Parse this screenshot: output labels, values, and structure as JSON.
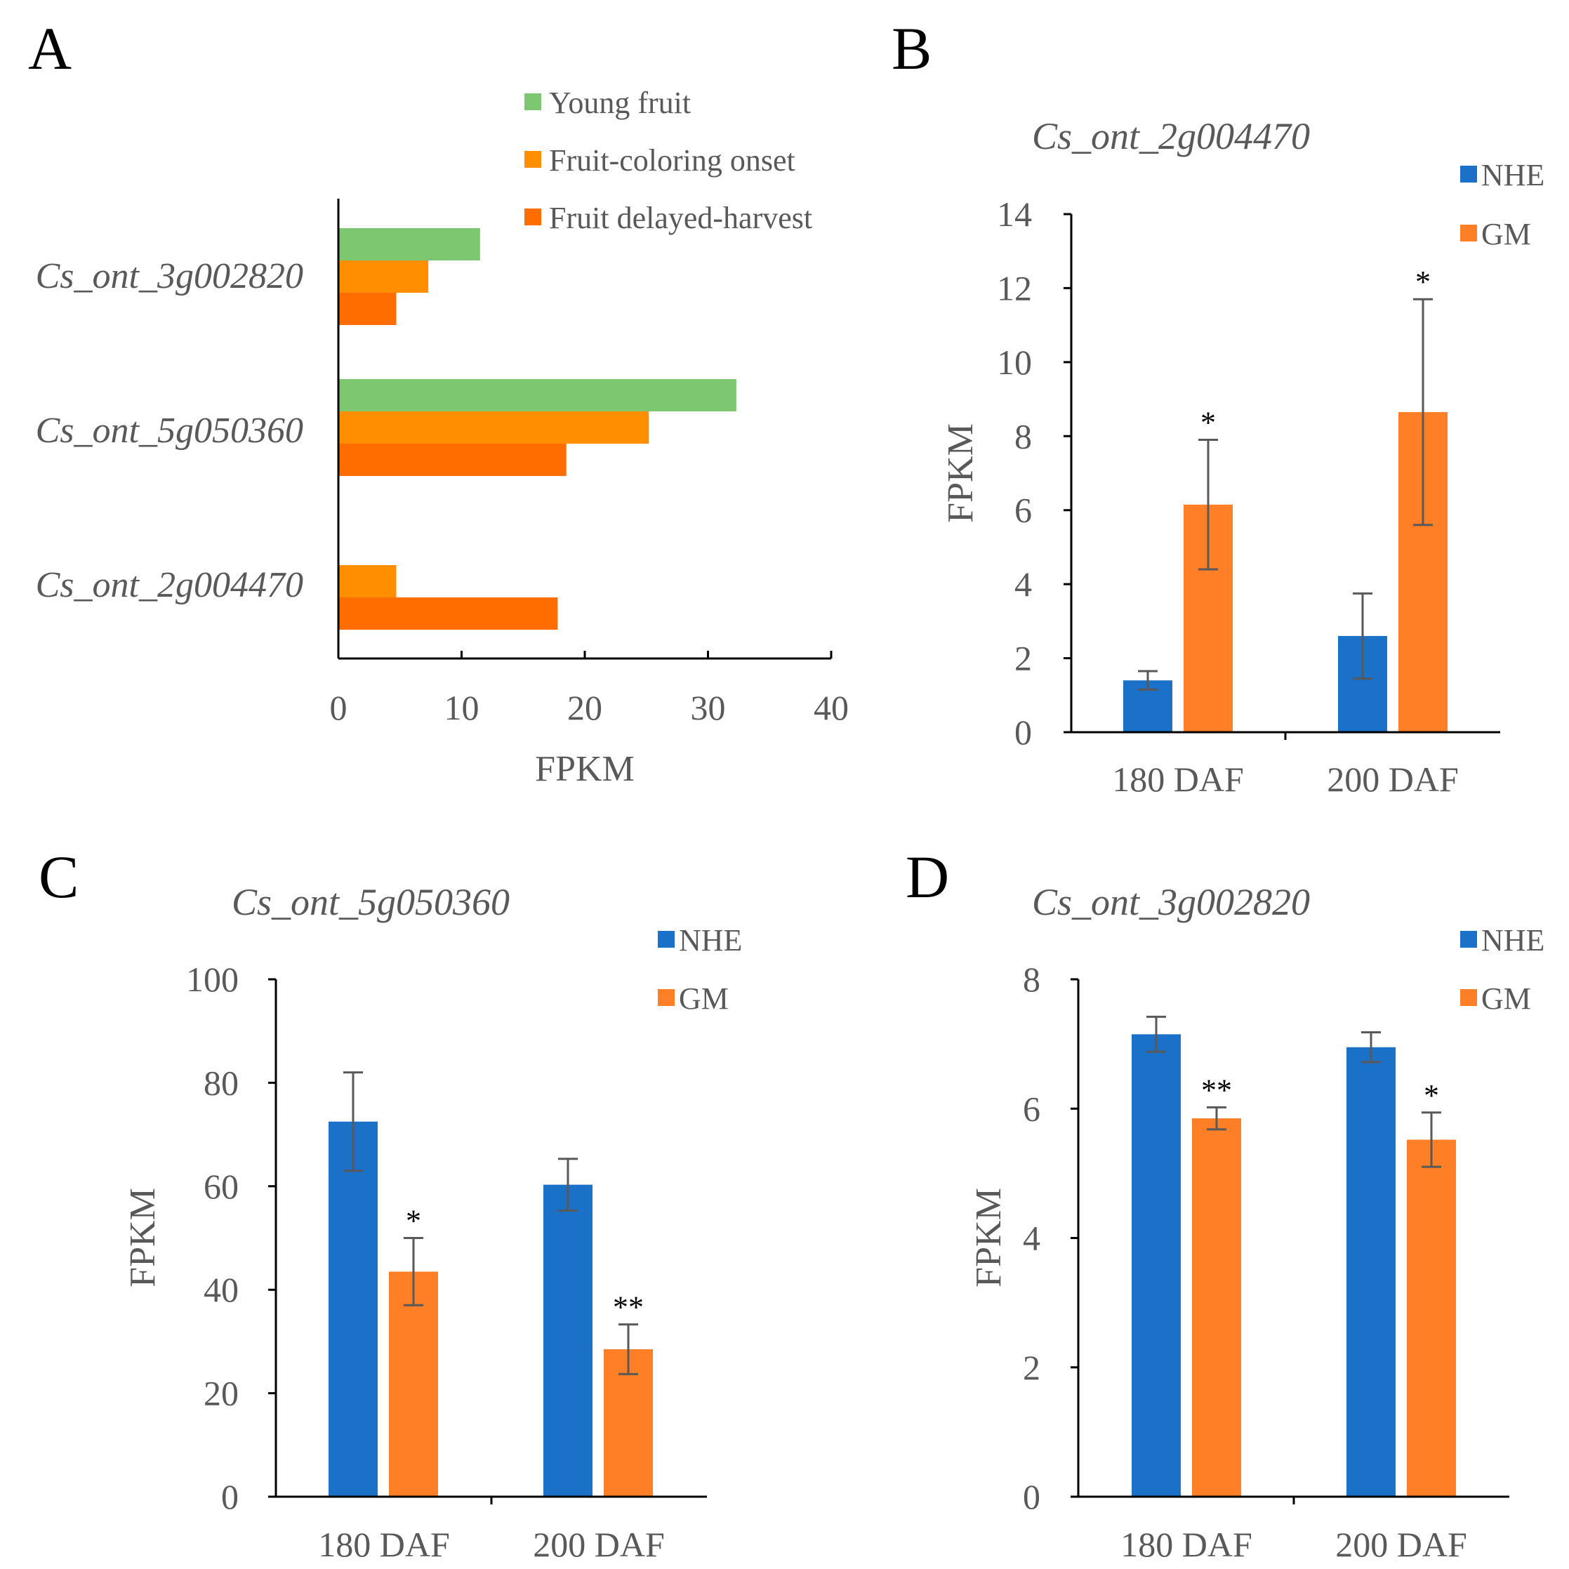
{
  "chart_data": [
    {
      "panel": "A",
      "type": "bar",
      "orientation": "horizontal",
      "categories": [
        "Cs_ont_3g002820",
        "Cs_ont_5g050360",
        "Cs_ont_2g004470"
      ],
      "series": [
        {
          "name": "Young fruit",
          "color": "#7ec771",
          "values": [
            11.5,
            32.3,
            0
          ]
        },
        {
          "name": "Fruit-coloring onset",
          "color": "#ff8f00",
          "values": [
            7.3,
            25.2,
            4.7
          ]
        },
        {
          "name": "Fruit delayed-harvest",
          "color": "#ff6d00",
          "values": [
            4.7,
            18.5,
            17.8
          ]
        }
      ],
      "xlabel": "FPKM",
      "xlim": [
        0,
        40
      ],
      "xticks": [
        "0",
        "10",
        "20",
        "30",
        "40"
      ],
      "legend_position": "top-right"
    },
    {
      "panel": "B",
      "type": "bar",
      "title": "Cs_ont_2g004470",
      "categories": [
        "180 DAF",
        "200 DAF"
      ],
      "series": [
        {
          "name": "NHE",
          "color": "#1b70c8",
          "values": [
            1.4,
            2.6
          ],
          "errors": [
            0.25,
            1.15
          ],
          "significance": [
            "",
            ""
          ]
        },
        {
          "name": "GM",
          "color": "#ff7f27",
          "values": [
            6.15,
            8.65
          ],
          "errors": [
            1.75,
            3.05
          ],
          "significance": [
            "*",
            "*"
          ]
        }
      ],
      "ylabel": "FPKM",
      "ylim": [
        0,
        14
      ],
      "yticks": [
        "0",
        "2",
        "4",
        "6",
        "8",
        "10",
        "12",
        "14"
      ],
      "legend_position": "top-right"
    },
    {
      "panel": "C",
      "type": "bar",
      "title": "Cs_ont_5g050360",
      "categories": [
        "180 DAF",
        "200 DAF"
      ],
      "series": [
        {
          "name": "NHE",
          "color": "#1b70c8",
          "values": [
            72.5,
            60.3
          ],
          "errors": [
            9.5,
            5.0
          ],
          "significance": [
            "",
            ""
          ]
        },
        {
          "name": "GM",
          "color": "#ff7f27",
          "values": [
            43.5,
            28.5
          ],
          "errors": [
            6.5,
            4.8
          ],
          "significance": [
            "*",
            "**"
          ]
        }
      ],
      "ylabel": "FPKM",
      "ylim": [
        0,
        100
      ],
      "yticks": [
        "0",
        "20",
        "40",
        "60",
        "80",
        "100"
      ],
      "legend_position": "top-right"
    },
    {
      "panel": "D",
      "type": "bar",
      "title": "Cs_ont_3g002820",
      "categories": [
        "180 DAF",
        "200 DAF"
      ],
      "series": [
        {
          "name": "NHE",
          "color": "#1b70c8",
          "values": [
            7.15,
            6.95
          ],
          "errors": [
            0.27,
            0.23
          ],
          "significance": [
            "",
            ""
          ]
        },
        {
          "name": "GM",
          "color": "#ff7f27",
          "values": [
            5.85,
            5.52
          ],
          "errors": [
            0.17,
            0.42
          ],
          "significance": [
            "**",
            "*"
          ]
        }
      ],
      "ylabel": "FPKM",
      "ylim": [
        0,
        8
      ],
      "yticks": [
        "0",
        "2",
        "4",
        "6",
        "8"
      ],
      "legend_position": "top-right"
    }
  ]
}
